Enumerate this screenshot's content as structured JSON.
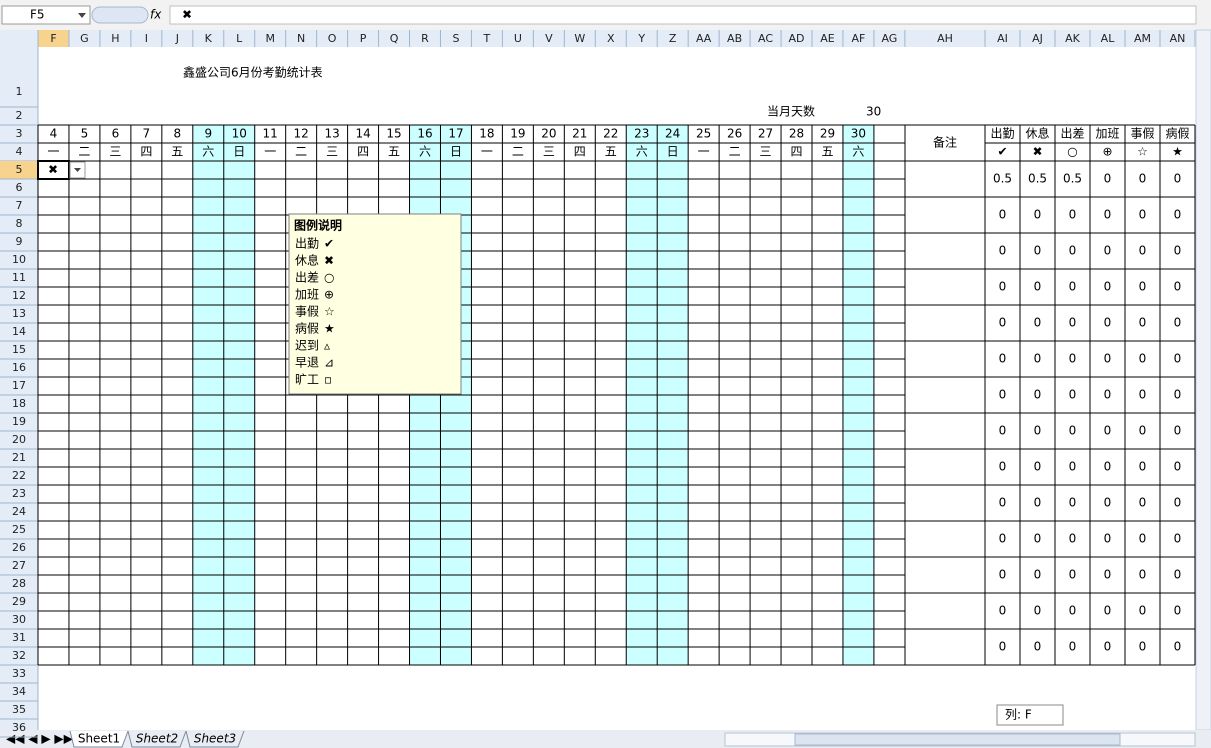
{
  "formula_bar": {
    "cell": "F5",
    "function_icon": "fx",
    "content": "✖"
  },
  "column_headers": [
    "F",
    "G",
    "H",
    "I",
    "J",
    "K",
    "L",
    "M",
    "N",
    "O",
    "P",
    "Q",
    "R",
    "S",
    "T",
    "U",
    "V",
    "W",
    "X",
    "Y",
    "Z",
    "AA",
    "AB",
    "AC",
    "AD",
    "AE",
    "AF",
    "AG",
    "AH",
    "AI",
    "AJ",
    "AK",
    "AL",
    "AM",
    "AN"
  ],
  "row_headers": [
    1,
    2,
    3,
    4,
    5,
    6,
    7,
    8,
    9,
    10,
    11,
    12,
    13,
    14,
    15,
    16,
    17,
    18,
    19,
    20,
    21,
    22,
    23,
    24,
    25,
    26,
    27,
    28,
    29,
    30,
    31,
    32,
    33,
    34,
    35,
    36
  ],
  "shaded_columns": [
    "K",
    "L",
    "R",
    "S",
    "Y",
    "Z",
    "AF"
  ],
  "shade_color": "#ccffff",
  "sheet": {
    "title": "鑫盛公司6月份考勤统计表",
    "days_label": "当月天数",
    "days_value": 30,
    "day_numbers": [
      4,
      5,
      6,
      7,
      8,
      9,
      10,
      11,
      12,
      13,
      14,
      15,
      16,
      17,
      18,
      19,
      20,
      21,
      22,
      23,
      24,
      25,
      26,
      27,
      28,
      29,
      30
    ],
    "weekdays": [
      "一",
      "二",
      "三",
      "四",
      "五",
      "六",
      "日",
      "一",
      "二",
      "三",
      "四",
      "五",
      "六",
      "日",
      "一",
      "二",
      "三",
      "四",
      "五",
      "六",
      "日",
      "一",
      "二",
      "三",
      "四",
      "五",
      "六"
    ],
    "active_cell_value": "✖",
    "note_header": "备注",
    "summary": {
      "headers": [
        "出勤",
        "休息",
        "出差",
        "加班",
        "事假",
        "病假"
      ],
      "symbols": [
        "✔",
        "✖",
        "○",
        "⊕",
        "☆",
        "★"
      ],
      "rows": [
        [
          0.5,
          0.5,
          0.5,
          0,
          0,
          0
        ],
        [
          0,
          0,
          0,
          0,
          0,
          0
        ],
        [
          0,
          0,
          0,
          0,
          0,
          0
        ],
        [
          0,
          0,
          0,
          0,
          0,
          0
        ],
        [
          0,
          0,
          0,
          0,
          0,
          0
        ],
        [
          0,
          0,
          0,
          0,
          0,
          0
        ],
        [
          0,
          0,
          0,
          0,
          0,
          0
        ],
        [
          0,
          0,
          0,
          0,
          0,
          0
        ],
        [
          0,
          0,
          0,
          0,
          0,
          0
        ],
        [
          0,
          0,
          0,
          0,
          0,
          0
        ],
        [
          0,
          0,
          0,
          0,
          0,
          0
        ],
        [
          0,
          0,
          0,
          0,
          0,
          0
        ],
        [
          0,
          0,
          0,
          0,
          0,
          0
        ],
        [
          0,
          0,
          0,
          0,
          0,
          0
        ]
      ]
    }
  },
  "legend_note": {
    "title": "图例说明",
    "items": [
      {
        "label": "出勤",
        "symbol": "✔"
      },
      {
        "label": "休息",
        "symbol": "✖"
      },
      {
        "label": "出差",
        "symbol": "○"
      },
      {
        "label": "加班",
        "symbol": "⊕"
      },
      {
        "label": "事假",
        "symbol": "☆"
      },
      {
        "label": "病假",
        "symbol": "★"
      },
      {
        "label": "迟到",
        "symbol": "▵"
      },
      {
        "label": "早退",
        "symbol": "⊿"
      },
      {
        "label": "旷工",
        "symbol": "▫"
      }
    ]
  },
  "status": "列: F",
  "tabs": [
    "Sheet1",
    "Sheet2",
    "Sheet3"
  ]
}
